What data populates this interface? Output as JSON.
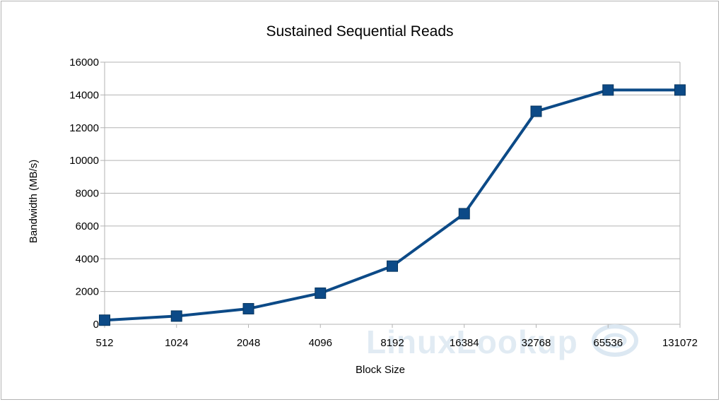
{
  "chart_data": {
    "type": "line",
    "title": "Sustained Sequential Reads",
    "xlabel": "Block Size",
    "ylabel": "Bandwidth (MB/s)",
    "categories": [
      "512",
      "1024",
      "2048",
      "4096",
      "8192",
      "16384",
      "32768",
      "65536",
      "131072"
    ],
    "series": [
      {
        "name": "Bandwidth",
        "values": [
          250,
          500,
          950,
          1900,
          3550,
          6750,
          13000,
          14300,
          14300
        ]
      }
    ],
    "ylim": [
      0,
      16000
    ],
    "yticks": [
      "0",
      "2000",
      "4000",
      "6000",
      "8000",
      "10000",
      "12000",
      "14000",
      "16000"
    ],
    "grid": true,
    "line_color": "#0c4a87",
    "watermark": "LinuxLookup"
  }
}
